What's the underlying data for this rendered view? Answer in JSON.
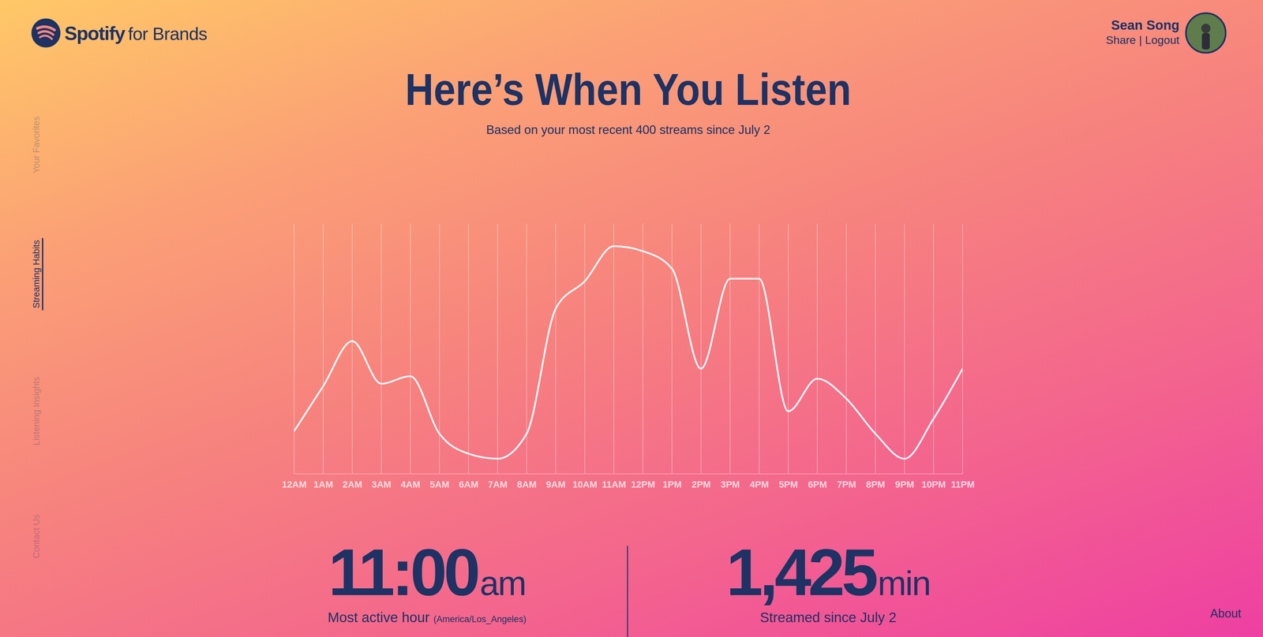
{
  "header": {
    "brand": "Spotify",
    "brand_suffix": "for Brands",
    "user_name": "Sean Song",
    "user_actions": "Share | Logout"
  },
  "nav": [
    {
      "label": "Your Favorites",
      "active": false
    },
    {
      "label": "Streaming Habits",
      "active": true
    },
    {
      "label": "Listening Insights",
      "active": false
    },
    {
      "label": "Contact Us",
      "active": false
    }
  ],
  "chart_data": {
    "type": "line",
    "title": "Here’s When You Listen",
    "subtitle": "Based on your most recent 400 streams since July 2",
    "categories": [
      "12AM",
      "1AM",
      "2AM",
      "3AM",
      "4AM",
      "5AM",
      "6AM",
      "7AM",
      "8AM",
      "9AM",
      "10AM",
      "11AM",
      "12PM",
      "1PM",
      "2PM",
      "3PM",
      "4PM",
      "5PM",
      "6PM",
      "7PM",
      "8PM",
      "9PM",
      "10PM",
      "11PM"
    ],
    "values": [
      17,
      35,
      53,
      36,
      39,
      16,
      8,
      6,
      16,
      66,
      77,
      91,
      89,
      82,
      42,
      78,
      78,
      25,
      38,
      30,
      16,
      6,
      22,
      42
    ],
    "color": "#ffffff",
    "ylim": [
      0,
      100
    ],
    "grid": true,
    "tick_labels": "x"
  },
  "stats": [
    {
      "value": "11:00",
      "unit": "am",
      "label": "Most active hour",
      "note": "(America/Los_Angeles)"
    },
    {
      "value": "1,425",
      "unit": "min",
      "label": "Streamed since July 2"
    }
  ],
  "footer": {
    "about": "About"
  }
}
